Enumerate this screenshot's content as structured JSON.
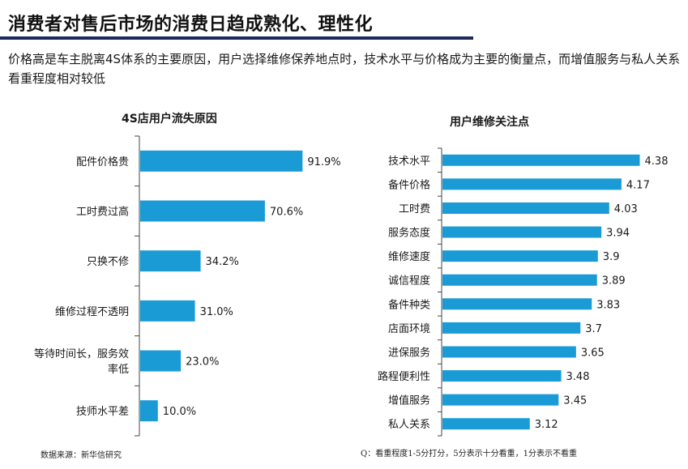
{
  "title": "消费者对售后市场的消费日趋成熟化、理性化",
  "subtitle": "价格高是车主脱离4S体系的主要原因，用户选择维修保养地点时，技术水平与价格成为主要的衡量点，而增值服务与私人关系看重程度相对较低",
  "source": "数据来源：新华信研究",
  "scale_note": "Q：看重程度1-5分打分，5分表示十分看重，1分表示不看重",
  "colors": {
    "bar": "#1b9bd6",
    "title_rule": "#1b2a5c",
    "axis": "#444444"
  },
  "chart_data": [
    {
      "type": "bar",
      "orientation": "horizontal",
      "title": "4S店用户流失原因",
      "categories": [
        "配件价格贵",
        "工时费过高",
        "只换不修",
        "维修过程不透明",
        "等待时间长，服务效率低",
        "技师水平差"
      ],
      "category_lines": [
        [
          "配件价格贵"
        ],
        [
          "工时费过高"
        ],
        [
          "只换不修"
        ],
        [
          "维修过程不透明"
        ],
        [
          "等待时间长，服务效",
          "率低"
        ],
        [
          "技师水平差"
        ]
      ],
      "values": [
        91.9,
        70.6,
        34.2,
        31.0,
        23.0,
        10.0
      ],
      "labels": [
        "91.9%",
        "70.6%",
        "34.2%",
        "31.0%",
        "23.0%",
        "10.0%"
      ],
      "unit": "%",
      "xlim": [
        0,
        100
      ]
    },
    {
      "type": "bar",
      "orientation": "horizontal",
      "title": "用户维修关注点",
      "categories": [
        "技术水平",
        "备件价格",
        "工时费",
        "服务态度",
        "维修速度",
        "诚信程度",
        "备件种类",
        "店面环境",
        "进保服务",
        "路程便利性",
        "增值服务",
        "私人关系"
      ],
      "values": [
        4.38,
        4.17,
        4.03,
        3.94,
        3.9,
        3.89,
        3.83,
        3.7,
        3.65,
        3.48,
        3.45,
        3.12
      ],
      "labels": [
        "4.38",
        "4.17",
        "4.03",
        "3.94",
        "3.9",
        "3.89",
        "3.83",
        "3.7",
        "3.65",
        "3.48",
        "3.45",
        "3.12"
      ],
      "xlim": [
        2.12,
        4.7
      ]
    }
  ]
}
